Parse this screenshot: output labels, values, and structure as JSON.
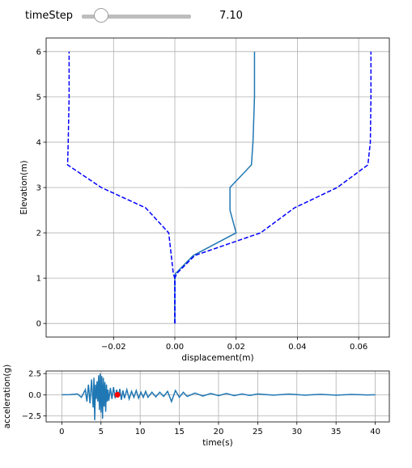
{
  "control": {
    "label": "timeStep",
    "value_text": "7.10",
    "value": 7.1,
    "min": 0,
    "max": 40
  },
  "colors": {
    "line": "#1f77b4",
    "envelope": "#0000ff",
    "marker": "#ff0000",
    "grid": "#b0b0b0"
  },
  "chart_data": [
    {
      "type": "line",
      "title": "",
      "xlabel": "displacement(m)",
      "ylabel": "Elevation(m)",
      "xlim": [
        -0.042,
        0.07
      ],
      "ylim": [
        -0.3,
        6.3
      ],
      "xticks": [
        -0.02,
        0.0,
        0.02,
        0.04,
        0.06
      ],
      "xtick_labels": [
        "−0.02",
        "0.00",
        "0.02",
        "0.04",
        "0.06"
      ],
      "yticks": [
        0,
        1,
        2,
        3,
        4,
        5,
        6
      ],
      "ytick_labels": [
        "0",
        "1",
        "2",
        "3",
        "4",
        "5",
        "6"
      ],
      "grid": true,
      "series": [
        {
          "style": "solid",
          "x": [
            0.0,
            0.0,
            0.0,
            0.0,
            0.0002,
            0.006,
            0.02,
            0.018,
            0.018,
            0.025,
            0.0255,
            0.026,
            0.026,
            0.026
          ],
          "y": [
            0,
            0.5,
            0.8,
            1.0,
            1.1,
            1.5,
            2.0,
            2.5,
            3.0,
            3.5,
            4.0,
            5.0,
            5.5,
            6.0
          ]
        },
        {
          "style": "dashed",
          "x": [
            0.0,
            0.0,
            0.0,
            0.0,
            0.0006,
            0.0065,
            0.028,
            0.039,
            0.053,
            0.063,
            0.0638,
            0.064,
            0.064,
            0.064
          ],
          "y": [
            0,
            0.5,
            0.8,
            1.0,
            1.1,
            1.5,
            2.0,
            2.55,
            3.0,
            3.5,
            4.0,
            5.0,
            5.5,
            6.0
          ]
        },
        {
          "style": "dashed",
          "x": [
            0.0,
            0.0,
            0.0,
            0.0,
            -0.0005,
            -0.002,
            -0.0095,
            -0.024,
            -0.035,
            -0.0348,
            -0.0345,
            -0.0345
          ],
          "y": [
            0,
            0.5,
            0.8,
            1.0,
            1.1,
            2.0,
            2.55,
            3.0,
            3.5,
            4.0,
            5.0,
            6.0
          ]
        }
      ]
    },
    {
      "type": "line",
      "title": "",
      "xlabel": "time(s)",
      "ylabel": "acceleration(g)",
      "xlim": [
        -2,
        41.8
      ],
      "ylim": [
        -3.2,
        2.8
      ],
      "xticks": [
        0,
        5,
        10,
        15,
        20,
        25,
        30,
        35,
        40
      ],
      "xtick_labels": [
        "0",
        "5",
        "10",
        "15",
        "20",
        "25",
        "30",
        "35",
        "40"
      ],
      "yticks": [
        -2.5,
        0.0,
        2.5
      ],
      "ytick_labels": [
        "−2.5",
        "0.0",
        "2.5"
      ],
      "grid": true,
      "series": [
        {
          "style": "solid",
          "x": [
            0,
            1,
            2,
            2.5,
            3,
            3.2,
            3.4,
            3.6,
            3.8,
            4.0,
            4.1,
            4.2,
            4.3,
            4.4,
            4.5,
            4.6,
            4.7,
            4.8,
            4.9,
            5.0,
            5.1,
            5.2,
            5.3,
            5.4,
            5.5,
            5.6,
            5.7,
            5.8,
            5.9,
            6.0,
            6.2,
            6.4,
            6.6,
            6.8,
            7.0,
            7.2,
            7.4,
            7.6,
            7.8,
            8.0,
            8.3,
            8.6,
            8.9,
            9.2,
            9.5,
            9.8,
            10.1,
            10.4,
            10.7,
            11.0,
            11.5,
            12.0,
            12.5,
            13.0,
            13.5,
            14.0,
            14.5,
            15.0,
            15.5,
            16.0,
            17,
            18,
            19,
            20,
            21,
            22,
            23,
            24,
            25,
            27,
            29,
            31,
            33,
            35,
            37,
            39,
            40
          ],
          "y": [
            0,
            0.02,
            0.1,
            -0.3,
            0.6,
            -0.8,
            1.2,
            -1.0,
            1.8,
            -1.5,
            2.0,
            -3.0,
            1.2,
            -0.5,
            1.6,
            -0.8,
            2.3,
            -1.8,
            2.5,
            -2.1,
            2.2,
            -2.8,
            2.0,
            -1.4,
            1.5,
            -2.0,
            1.2,
            -0.8,
            0.6,
            -0.7,
            0.8,
            -0.5,
            0.9,
            -0.4,
            0.6,
            -0.3,
            0.7,
            -0.6,
            0.5,
            -0.4,
            0.6,
            -0.5,
            0.4,
            -0.3,
            0.5,
            -0.4,
            0.3,
            -0.3,
            0.4,
            -0.3,
            0.3,
            -0.25,
            0.3,
            -0.2,
            0.4,
            -0.8,
            0.5,
            -0.3,
            0.3,
            -0.2,
            0.2,
            -0.15,
            0.15,
            -0.1,
            0.15,
            -0.1,
            0.1,
            -0.08,
            0.1,
            -0.05,
            0.08,
            -0.05,
            0.05,
            -0.04,
            0.04,
            -0.02,
            0.0
          ]
        }
      ],
      "marker": {
        "x": 7.1,
        "y": 0.0
      }
    }
  ]
}
